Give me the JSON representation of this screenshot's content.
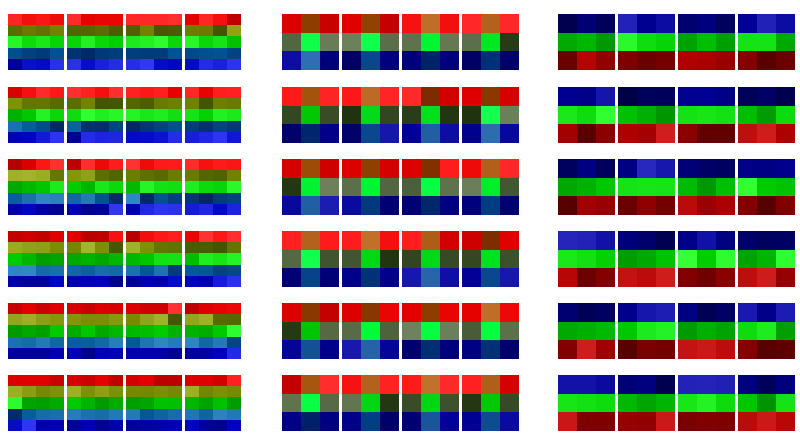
{
  "palette": {
    "red": "#ff1a1a",
    "dark_red": "#b00000",
    "orange_brown": "#b4641e",
    "green": "#19e619",
    "bright_green": "#00ff3c",
    "teal": "#1ea064",
    "gray_green": "#5a6e4a",
    "blue": "#1a20d8",
    "navy": "#0a0aa0",
    "steel_blue": "#1e5aa0"
  },
  "groups": [
    {
      "name": "left-group",
      "pattern": "gradient-rows",
      "strips": 6,
      "tiles_per_strip": 4
    },
    {
      "name": "center-group",
      "pattern": "checker-center",
      "strips": 6,
      "tiles_per_strip": 4
    },
    {
      "name": "right-group",
      "pattern": "banded-rows",
      "strips": 6,
      "tiles_per_strip": 4
    }
  ]
}
